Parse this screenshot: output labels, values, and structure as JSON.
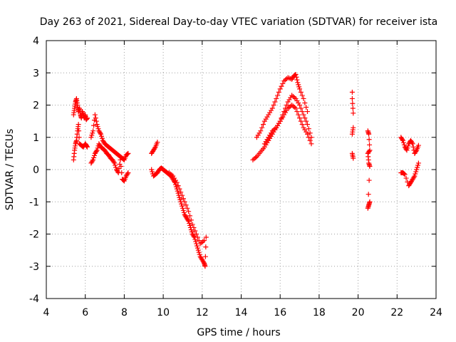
{
  "chart_data": {
    "type": "scatter",
    "title": "Day 263 of 2021, Sidereal Day-to-day VTEC variation (SDTVAR) for receiver ista",
    "xlabel": "GPS time / hours",
    "ylabel": "SDTVAR / TECUs",
    "xlim": [
      4,
      24
    ],
    "ylim": [
      -4,
      4
    ],
    "xticks": [
      4,
      6,
      8,
      10,
      12,
      14,
      16,
      18,
      20,
      22,
      24
    ],
    "yticks": [
      -4,
      -3,
      -2,
      -1,
      0,
      1,
      2,
      3,
      4
    ],
    "grid": true,
    "marker": "+",
    "color": "#ff0000",
    "series": [
      {
        "name": "seg1-upper",
        "x": [
          5.4,
          5.45,
          5.5,
          5.55,
          5.6,
          5.65,
          5.7,
          5.75,
          5.8,
          5.85,
          5.9,
          5.95,
          6.0,
          6.05,
          6.1
        ],
        "y": [
          1.7,
          1.9,
          2.1,
          2.2,
          2.0,
          1.8,
          1.9,
          1.7,
          1.6,
          1.8,
          1.7,
          1.6,
          1.7,
          1.55,
          1.6
        ]
      },
      {
        "name": "seg1-lower",
        "x": [
          5.4,
          5.45,
          5.5,
          5.55,
          5.6,
          5.65,
          5.7,
          5.8,
          5.9,
          6.0,
          6.05,
          6.1
        ],
        "y": [
          0.3,
          0.6,
          0.8,
          0.9,
          1.2,
          1.4,
          0.8,
          0.75,
          0.7,
          0.8,
          0.75,
          0.7
        ]
      },
      {
        "name": "seg2-upper",
        "x": [
          6.3,
          6.4,
          6.5,
          6.6,
          6.7,
          6.8,
          6.9,
          7.0,
          7.1,
          7.2,
          7.3,
          7.4,
          7.5,
          7.6,
          7.7,
          7.8,
          7.9,
          8.0,
          8.1,
          8.2
        ],
        "y": [
          1.0,
          1.2,
          1.7,
          1.4,
          1.2,
          1.1,
          0.9,
          0.8,
          0.75,
          0.7,
          0.65,
          0.6,
          0.55,
          0.5,
          0.45,
          0.4,
          0.35,
          0.3,
          0.45,
          0.5
        ]
      },
      {
        "name": "seg2-lower",
        "x": [
          6.3,
          6.4,
          6.5,
          6.6,
          6.7,
          6.8,
          6.9,
          7.0,
          7.1,
          7.2,
          7.3,
          7.4,
          7.5,
          7.6,
          7.7,
          7.8,
          7.9,
          8.0,
          8.1,
          8.2
        ],
        "y": [
          0.2,
          0.3,
          0.5,
          0.6,
          0.8,
          0.7,
          0.65,
          0.6,
          0.5,
          0.45,
          0.35,
          0.3,
          0.2,
          0.0,
          -0.1,
          0.3,
          -0.3,
          -0.35,
          -0.2,
          -0.1
        ]
      },
      {
        "name": "seg3",
        "x": [
          9.4,
          9.5,
          9.6,
          9.7,
          9.8,
          9.9,
          10.0,
          10.1,
          10.2,
          10.3,
          10.4,
          10.5,
          10.6,
          10.7,
          10.8,
          10.9,
          11.0,
          11.1,
          11.2,
          11.3,
          11.4,
          11.5,
          11.6,
          11.7,
          11.8,
          11.9,
          12.0,
          12.1,
          12.15,
          12.2
        ],
        "y": [
          0.0,
          -0.2,
          -0.15,
          -0.1,
          0.0,
          0.05,
          0.0,
          -0.05,
          -0.1,
          -0.15,
          -0.2,
          -0.3,
          -0.4,
          -0.6,
          -0.8,
          -1.0,
          -1.2,
          -1.4,
          -1.5,
          -1.6,
          -1.8,
          -2.0,
          -2.1,
          -2.3,
          -2.5,
          -2.7,
          -2.8,
          -2.9,
          -3.0,
          -2.1
        ]
      },
      {
        "name": "seg3-start",
        "x": [
          9.4,
          9.5,
          9.6,
          9.7
        ],
        "y": [
          0.5,
          0.6,
          0.7,
          0.85
        ]
      },
      {
        "name": "seg3-offset",
        "x": [
          10.3,
          10.5,
          10.7,
          10.9,
          11.1,
          11.3,
          11.5,
          11.7,
          11.9,
          12.1
        ],
        "y": [
          -0.1,
          -0.2,
          -0.4,
          -0.7,
          -1.0,
          -1.3,
          -1.7,
          -2.0,
          -2.3,
          -2.2
        ]
      },
      {
        "name": "seg4-upper",
        "x": [
          14.8,
          15.0,
          15.2,
          15.4,
          15.6,
          15.8,
          16.0,
          16.2,
          16.4,
          16.6,
          16.7,
          16.8,
          16.9,
          17.0,
          17.2,
          17.4
        ],
        "y": [
          1.0,
          1.2,
          1.5,
          1.7,
          1.9,
          2.2,
          2.5,
          2.75,
          2.85,
          2.8,
          2.9,
          2.95,
          2.7,
          2.5,
          2.2,
          1.8
        ]
      },
      {
        "name": "seg4-middle",
        "x": [
          15.2,
          15.4,
          15.6,
          15.8,
          16.0,
          16.2,
          16.4,
          16.6,
          16.8,
          17.0,
          17.2,
          17.4,
          17.6
        ],
        "y": [
          0.8,
          1.0,
          1.2,
          1.3,
          1.5,
          1.8,
          2.1,
          2.3,
          2.2,
          2.0,
          1.7,
          1.4,
          1.0
        ]
      },
      {
        "name": "seg4-lower",
        "x": [
          14.6,
          14.8,
          15.0,
          15.2,
          15.4,
          15.6,
          15.8,
          16.0,
          16.2,
          16.4,
          16.6,
          16.8,
          17.0,
          17.2,
          17.4,
          17.6
        ],
        "y": [
          0.3,
          0.4,
          0.55,
          0.7,
          0.9,
          1.1,
          1.3,
          1.5,
          1.7,
          1.9,
          2.0,
          1.9,
          1.6,
          1.3,
          1.1,
          0.8
        ]
      },
      {
        "name": "seg5",
        "x": [
          19.7,
          19.7,
          19.75,
          19.75,
          19.7,
          19.7,
          19.75
        ],
        "y": [
          2.4,
          2.2,
          1.75,
          1.3,
          1.1,
          0.5,
          0.35
        ]
      },
      {
        "name": "seg6",
        "x": [
          20.5,
          20.55,
          20.6,
          20.5,
          20.55,
          20.6,
          20.5,
          20.55,
          20.6
        ],
        "y": [
          1.2,
          1.1,
          0.6,
          0.5,
          0.2,
          0.1,
          -1.2,
          -1.1,
          -1.0
        ]
      },
      {
        "name": "seg7",
        "x": [
          22.2,
          22.3,
          22.4,
          22.5,
          22.6,
          22.7,
          22.8,
          22.9,
          23.0,
          23.1,
          22.2,
          22.3,
          22.4,
          22.6,
          22.7,
          22.8,
          22.9,
          23.0,
          23.1
        ],
        "y": [
          1.0,
          0.9,
          0.7,
          0.6,
          0.8,
          0.9,
          0.8,
          0.5,
          0.6,
          0.75,
          -0.1,
          -0.1,
          -0.15,
          -0.5,
          -0.4,
          -0.3,
          -0.2,
          0.0,
          0.2
        ]
      }
    ]
  }
}
